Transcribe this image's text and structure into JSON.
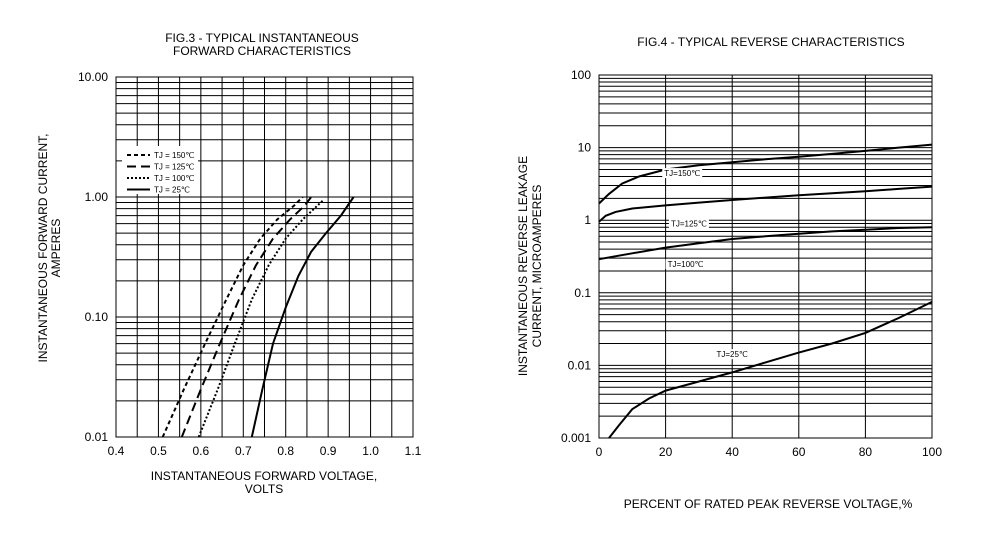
{
  "chart_data": [
    {
      "type": "line",
      "title_line1": "FIG.3 - TYPICAL INSTANTANEOUS",
      "title_line2": "FORWARD CHARACTERISTICS",
      "xlabel_line1": "INSTANTANEOUS FORWARD VOLTAGE,",
      "xlabel_line2": "VOLTS",
      "ylabel_line1": "INSTANTANEOUS FORWARD CURRENT,",
      "ylabel_line2": "AMPERES",
      "x_scale": "linear",
      "y_scale": "log",
      "xlim": [
        0.4,
        1.1
      ],
      "ylim": [
        0.01,
        10
      ],
      "xticks": [
        0.4,
        0.5,
        0.6,
        0.7,
        0.8,
        0.9,
        1.0,
        1.1
      ],
      "xtick_labels": [
        "0.4",
        "0.5",
        "0.6",
        "0.7",
        "0.8",
        "0.9",
        "1.0",
        "1.1"
      ],
      "yticks": [
        0.01,
        0.1,
        1,
        10
      ],
      "ytick_labels": [
        "0.01",
        "0.10",
        "1.00",
        "10.00"
      ],
      "grid": true,
      "legend_position": "upper-left",
      "series": [
        {
          "name": "TJ = 150℃",
          "style": "dashed-short",
          "points": [
            [
              0.51,
              0.01
            ],
            [
              0.56,
              0.025
            ],
            [
              0.61,
              0.06
            ],
            [
              0.66,
              0.14
            ],
            [
              0.7,
              0.27
            ],
            [
              0.74,
              0.45
            ],
            [
              0.78,
              0.65
            ],
            [
              0.82,
              0.85
            ],
            [
              0.84,
              1.0
            ]
          ]
        },
        {
          "name": "TJ = 125℃",
          "style": "dashed-long",
          "points": [
            [
              0.555,
              0.01
            ],
            [
              0.6,
              0.025
            ],
            [
              0.645,
              0.06
            ],
            [
              0.69,
              0.14
            ],
            [
              0.73,
              0.27
            ],
            [
              0.77,
              0.45
            ],
            [
              0.81,
              0.65
            ],
            [
              0.845,
              0.85
            ],
            [
              0.86,
              1.0
            ]
          ]
        },
        {
          "name": "TJ = 100℃",
          "style": "dotted",
          "points": [
            [
              0.595,
              0.01
            ],
            [
              0.64,
              0.025
            ],
            [
              0.68,
              0.06
            ],
            [
              0.72,
              0.14
            ],
            [
              0.76,
              0.27
            ],
            [
              0.8,
              0.45
            ],
            [
              0.84,
              0.65
            ],
            [
              0.875,
              0.85
            ],
            [
              0.89,
              0.95
            ]
          ]
        },
        {
          "name": "TJ = 25℃",
          "style": "solid",
          "points": [
            [
              0.72,
              0.01
            ],
            [
              0.745,
              0.025
            ],
            [
              0.77,
              0.06
            ],
            [
              0.8,
              0.12
            ],
            [
              0.83,
              0.22
            ],
            [
              0.86,
              0.35
            ],
            [
              0.895,
              0.5
            ],
            [
              0.93,
              0.7
            ],
            [
              0.96,
              1.0
            ]
          ]
        }
      ]
    },
    {
      "type": "line",
      "title": "FIG.4 - TYPICAL REVERSE CHARACTERISTICS",
      "xlabel": "PERCENT OF RATED PEAK REVERSE VOLTAGE,%",
      "ylabel_line1": "INSTANTANEOUS REVERSE LEAKAGE",
      "ylabel_line2": "CURRENT, MICROAMPERES",
      "x_scale": "linear",
      "y_scale": "log",
      "xlim": [
        0,
        100
      ],
      "ylim": [
        0.001,
        100
      ],
      "xticks": [
        0,
        20,
        40,
        60,
        80,
        100
      ],
      "xtick_labels": [
        "0",
        "20",
        "40",
        "60",
        "80",
        "100"
      ],
      "yticks": [
        0.001,
        0.01,
        0.1,
        1,
        10,
        100
      ],
      "ytick_labels": [
        "0.001",
        "0.01",
        "0.1",
        "1",
        "10",
        "100"
      ],
      "grid": true,
      "series": [
        {
          "name": "TJ=150℃",
          "style": "solid",
          "points": [
            [
              0,
              1.7
            ],
            [
              3,
              2.3
            ],
            [
              7,
              3.2
            ],
            [
              12,
              4.0
            ],
            [
              20,
              5.0
            ],
            [
              30,
              5.7
            ],
            [
              40,
              6.3
            ],
            [
              50,
              6.9
            ],
            [
              60,
              7.5
            ],
            [
              70,
              8.2
            ],
            [
              80,
              9.0
            ],
            [
              90,
              10.0
            ],
            [
              100,
              11.0
            ]
          ]
        },
        {
          "name": "TJ=125℃",
          "style": "solid",
          "points": [
            [
              0,
              0.95
            ],
            [
              2,
              1.15
            ],
            [
              5,
              1.3
            ],
            [
              10,
              1.45
            ],
            [
              20,
              1.6
            ],
            [
              30,
              1.75
            ],
            [
              40,
              1.9
            ],
            [
              50,
              2.05
            ],
            [
              60,
              2.2
            ],
            [
              70,
              2.35
            ],
            [
              80,
              2.5
            ],
            [
              90,
              2.7
            ],
            [
              100,
              2.9
            ]
          ]
        },
        {
          "name": "TJ=100℃",
          "style": "solid",
          "points": [
            [
              0,
              0.29
            ],
            [
              10,
              0.35
            ],
            [
              20,
              0.42
            ],
            [
              30,
              0.48
            ],
            [
              40,
              0.55
            ],
            [
              50,
              0.6
            ],
            [
              60,
              0.65
            ],
            [
              70,
              0.7
            ],
            [
              80,
              0.74
            ],
            [
              90,
              0.78
            ],
            [
              100,
              0.8
            ]
          ]
        },
        {
          "name": "TJ=25℃",
          "style": "solid",
          "points": [
            [
              3,
              0.001
            ],
            [
              6,
              0.0015
            ],
            [
              10,
              0.0025
            ],
            [
              15,
              0.0035
            ],
            [
              20,
              0.0045
            ],
            [
              30,
              0.006
            ],
            [
              40,
              0.008
            ],
            [
              50,
              0.011
            ],
            [
              60,
              0.015
            ],
            [
              70,
              0.02
            ],
            [
              80,
              0.028
            ],
            [
              90,
              0.045
            ],
            [
              100,
              0.075
            ]
          ]
        }
      ],
      "curve_labels": [
        "TJ=150℃",
        "TJ=125℃",
        "TJ=100℃",
        "TJ=25℃"
      ]
    }
  ]
}
